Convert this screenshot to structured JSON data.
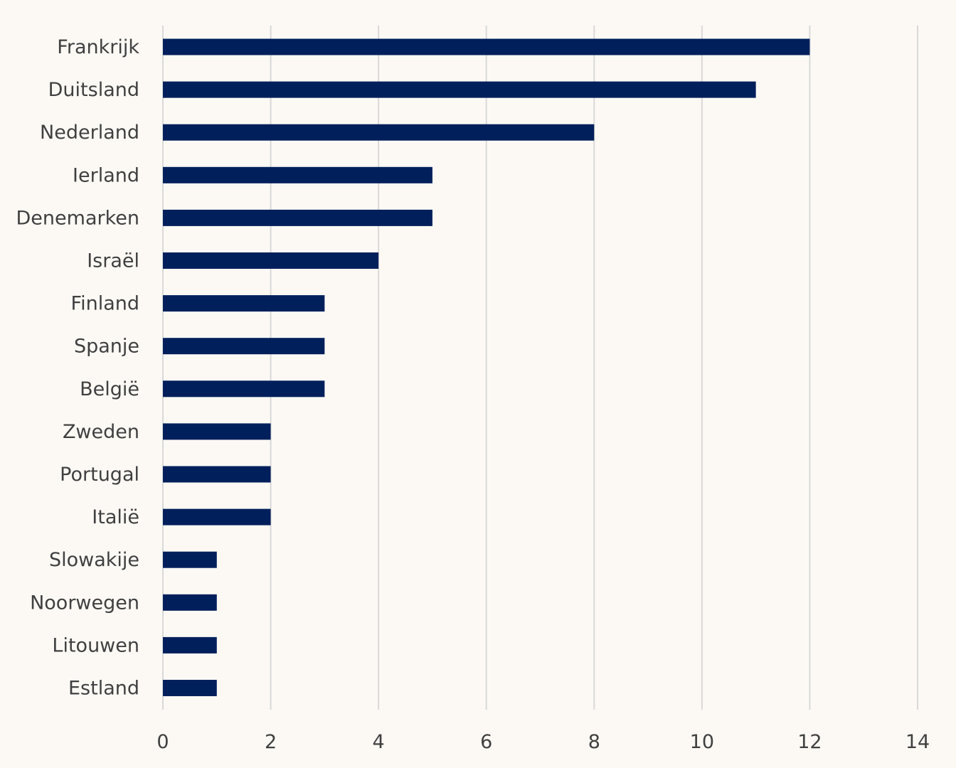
{
  "chart_data": {
    "type": "bar",
    "orientation": "horizontal",
    "categories": [
      "Frankrijk",
      "Duitsland",
      "Nederland",
      "Ierland",
      "Denemarken",
      "Israël",
      "Finland",
      "Spanje",
      "België",
      "Zweden",
      "Portugal",
      "Italië",
      "Slowakije",
      "Noorwegen",
      "Litouwen",
      "Estland"
    ],
    "values": [
      12,
      11,
      8,
      5,
      5,
      4,
      3,
      3,
      3,
      2,
      2,
      2,
      1,
      1,
      1,
      1
    ],
    "xlim": [
      0,
      14
    ],
    "xticks": [
      "0",
      "2",
      "4",
      "6",
      "8",
      "10",
      "12",
      "14"
    ],
    "grid": "vertical",
    "legend": "none",
    "bar_color": "#001f5b",
    "background_color": "#fcf9f5"
  }
}
